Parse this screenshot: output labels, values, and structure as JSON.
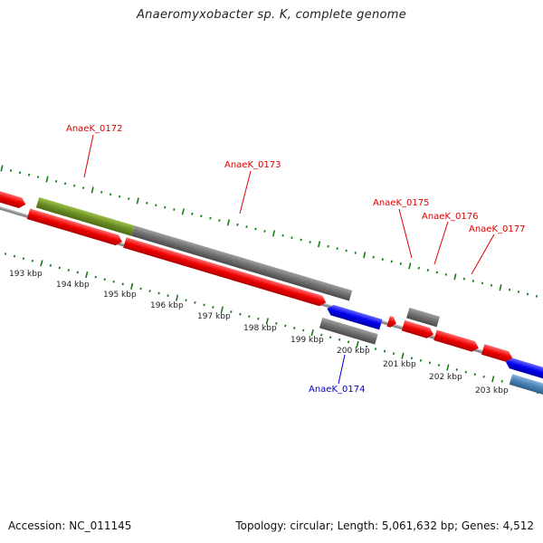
{
  "title": "Anaeromyxobacter sp. K, complete genome",
  "footer": {
    "accession": "Accession: NC_011145",
    "topology": "Topology: circular; Length: 5,061,632 bp; Genes: 4,512"
  },
  "ruler": {
    "ticks": [
      "193 kbp",
      "194 kbp",
      "195 kbp",
      "196 kbp",
      "197 kbp",
      "198 kbp",
      "199 kbp",
      "200 kbp",
      "201 kbp",
      "202 kbp",
      "203 kbp"
    ]
  },
  "genes": [
    {
      "label": "AnaeK_0172",
      "strand": "forward",
      "color": "#dd0000"
    },
    {
      "label": "AnaeK_0173",
      "strand": "forward",
      "color": "#dd0000"
    },
    {
      "label": "AnaeK_0174",
      "strand": "reverse",
      "color": "#0000cc"
    },
    {
      "label": "AnaeK_0175",
      "strand": "forward",
      "color": "#dd0000"
    },
    {
      "label": "AnaeK_0176",
      "strand": "forward",
      "color": "#dd0000"
    },
    {
      "label": "AnaeK_0177",
      "strand": "forward",
      "color": "#dd0000"
    }
  ],
  "colors": {
    "forward_cds": "#ee0000",
    "reverse_cds": "#0000ee",
    "grey_feature": "#6f6f6f",
    "olive_feature": "#6b8e23",
    "steel_feature": "#4682b4",
    "backbone": "#808080",
    "tick_marks": "#1a7a1a"
  }
}
